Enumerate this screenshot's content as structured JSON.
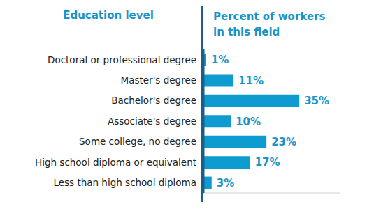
{
  "chart_data": {
    "type": "bar",
    "orientation": "horizontal",
    "ylabel": "Education level",
    "xlabel": "Percent of workers in this field",
    "categories": [
      "Doctoral or professional degree",
      "Master's degree",
      "Bachelor's degree",
      "Associate's degree",
      "Some college, no degree",
      "High school diploma or equivalent",
      "Less than high school diploma"
    ],
    "values": [
      1,
      11,
      35,
      10,
      23,
      17,
      3
    ],
    "value_labels": [
      "1%",
      "11%",
      "35%",
      "10%",
      "23%",
      "17%",
      "3%"
    ],
    "data_labels": true,
    "color": "#0e9bd0",
    "xlim": [
      0,
      50
    ],
    "xticks": [],
    "tick_labels": "y",
    "grid": false
  }
}
